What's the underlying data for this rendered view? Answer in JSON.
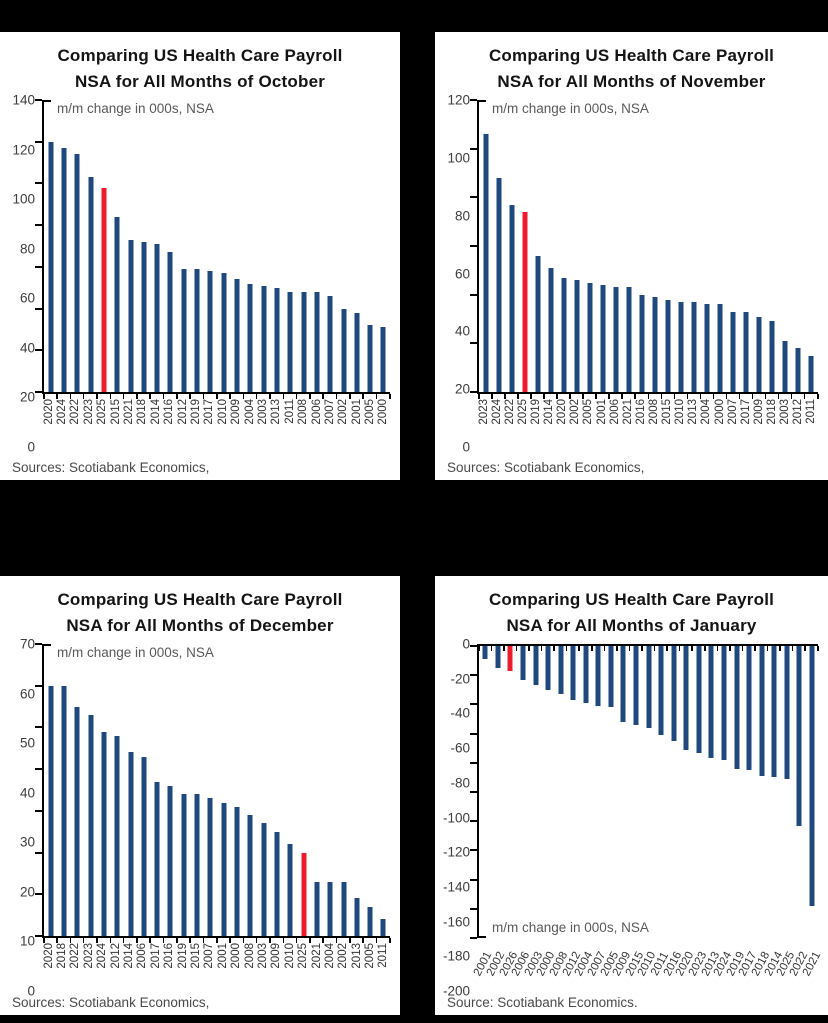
{
  "page": {
    "background": "#000000",
    "panel_background": "#ffffff"
  },
  "colors": {
    "bar_blue": "#1F497D",
    "highlight_red": "#EC1C2C",
    "axis_black": "#000000",
    "text_gray": "#595959"
  },
  "chart_data": [
    {
      "type": "bar",
      "title_lines": [
        "Comparing US Health Care Payroll",
        "NSA for All Months of October"
      ],
      "axis_label": "m/m change in 000s, NSA",
      "source": "Sources: Scotiabank Economics,",
      "ylim": [
        0,
        140
      ],
      "yticks": [
        140,
        120,
        100,
        80,
        60,
        40,
        20,
        0
      ],
      "grid": false,
      "legend": "none",
      "bar_color": "#1F497D",
      "highlight_color": "#EC1C2C",
      "highlight_category": "2025",
      "xlabel_style": "vertical",
      "categories": [
        "2020",
        "2024",
        "2022",
        "2023",
        "2025",
        "2015",
        "2021",
        "2018",
        "2014",
        "2016",
        "2012",
        "2019",
        "2017",
        "2010",
        "2009",
        "2004",
        "2003",
        "2013",
        "2011",
        "2008",
        "2006",
        "2007",
        "2002",
        "2001",
        "2005",
        "2000"
      ],
      "values": [
        120,
        117,
        114,
        103,
        98,
        84,
        73,
        72,
        71,
        67,
        59,
        59,
        58,
        57,
        54,
        52,
        51,
        50,
        48,
        48,
        48,
        46,
        40,
        38,
        32,
        31
      ]
    },
    {
      "type": "bar",
      "title_lines": [
        "Comparing US Health Care Payroll",
        "NSA for All Months of November"
      ],
      "axis_label": "m/m change in 000s, NSA",
      "source": "Sources: Scotiabank Economics,",
      "ylim": [
        0,
        120
      ],
      "yticks": [
        120,
        100,
        80,
        60,
        40,
        20,
        0
      ],
      "grid": false,
      "legend": "none",
      "bar_color": "#1F497D",
      "highlight_color": "#EC1C2C",
      "highlight_category": "2025",
      "xlabel_style": "vertical",
      "categories": [
        "2023",
        "2024",
        "2022",
        "2025",
        "2019",
        "2014",
        "2020",
        "2002",
        "2005",
        "2001",
        "2006",
        "2021",
        "2016",
        "2008",
        "2015",
        "2010",
        "2013",
        "2004",
        "2000",
        "2007",
        "2017",
        "2009",
        "2018",
        "2003",
        "2012",
        "2011"
      ],
      "values": [
        106,
        88,
        77,
        74,
        56,
        51,
        47,
        46,
        45,
        44,
        43,
        43,
        40,
        39,
        38,
        37,
        37,
        36,
        36,
        33,
        33,
        31,
        29,
        21,
        18,
        15
      ]
    },
    {
      "type": "bar",
      "title_lines": [
        "Comparing US Health Care Payroll",
        "NSA for All Months of December"
      ],
      "axis_label": "m/m change in 000s, NSA",
      "source": "Sources: Scotiabank Economics,",
      "ylim": [
        0,
        70
      ],
      "yticks": [
        70,
        60,
        50,
        40,
        30,
        20,
        10,
        0
      ],
      "grid": false,
      "legend": "none",
      "bar_color": "#1F497D",
      "highlight_color": "#EC1C2C",
      "highlight_category": "2025",
      "xlabel_style": "vertical",
      "categories": [
        "2020",
        "2018",
        "2022",
        "2023",
        "2024",
        "2012",
        "2014",
        "2006",
        "2017",
        "2016",
        "2019",
        "2015",
        "2007",
        "2001",
        "2000",
        "2008",
        "2003",
        "2009",
        "2010",
        "2025",
        "2021",
        "2004",
        "2002",
        "2013",
        "2005",
        "2011"
      ],
      "values": [
        60,
        60,
        55,
        53,
        49,
        48,
        44,
        43,
        37,
        36,
        34,
        34,
        33,
        32,
        31,
        29,
        27,
        25,
        22,
        20,
        13,
        13,
        13,
        9,
        7,
        4
      ]
    },
    {
      "type": "bar",
      "title_lines": [
        "Comparing US Health Care Payroll",
        "NSA for All Months of January"
      ],
      "axis_label": "m/m change in 000s, NSA",
      "source": "Source: Scotiabank Economics.",
      "ylim": [
        -200,
        0
      ],
      "yticks": [
        0,
        -20,
        -40,
        -60,
        -80,
        -100,
        -120,
        -140,
        -160,
        -180,
        -200
      ],
      "grid": false,
      "legend": "none",
      "bar_color": "#1F497D",
      "highlight_color": "#EC1C2C",
      "highlight_category": "2026",
      "xlabel_style": "slanted",
      "categories": [
        "2001",
        "2002",
        "2026",
        "2006",
        "2003",
        "2000",
        "2008",
        "2012",
        "2004",
        "2007",
        "2005",
        "2009",
        "2015",
        "2010",
        "2011",
        "2016",
        "2020",
        "2023",
        "2013",
        "2024",
        "2019",
        "2017",
        "2018",
        "2014",
        "2025",
        "2022",
        "2021"
      ],
      "values": [
        -9,
        -15,
        -17,
        -23,
        -27,
        -30,
        -33,
        -37,
        -39,
        -41,
        -42,
        -52,
        -54,
        -56,
        -61,
        -65,
        -71,
        -73,
        -77,
        -78,
        -84,
        -85,
        -89,
        -90,
        -91,
        -123,
        -178
      ]
    }
  ]
}
